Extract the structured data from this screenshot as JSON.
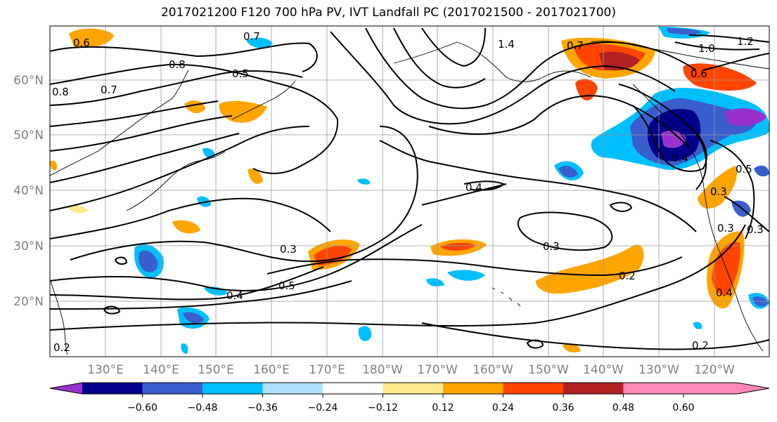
{
  "title": "2017021200 F120 700 hPa PV, IVT Landfall PC (2017021500 - 2017021700)",
  "lat_labels": [
    "60°N",
    "50°N",
    "40°N",
    "30°N",
    "20°N"
  ],
  "lon_labels": [
    "130°E",
    "140°E",
    "150°E",
    "160°E",
    "170°E",
    "180°W",
    "170°W",
    "160°W",
    "150°W",
    "140°W",
    "130°W",
    "120°W"
  ],
  "contour_labels": [
    "0.6",
    "0.7",
    "0.8",
    "0.5",
    "0.7",
    "0.8",
    "1.4",
    "1.2",
    "1.0",
    "0.7",
    "0.6",
    "0.4",
    "0.5",
    "0.3",
    "0.3",
    "0.3",
    "0.4",
    "0.3",
    "0.3",
    "0.5",
    "0.4",
    "0.2",
    "0.2",
    "0.4",
    "0.2"
  ],
  "colorbar": {
    "tick_labels": [
      "−0.60",
      "−0.48",
      "−0.36",
      "−0.24",
      "−0.12",
      "0.12",
      "0.24",
      "0.36",
      "0.48",
      "0.60"
    ],
    "colors": [
      "#9932cc",
      "#00008b",
      "#3a5fcd",
      "#00bfff",
      "#b0e2ff",
      "#ffffff",
      "#ffe98a",
      "#ffa500",
      "#ff4500",
      "#b22222",
      "#ff88b8"
    ]
  }
}
